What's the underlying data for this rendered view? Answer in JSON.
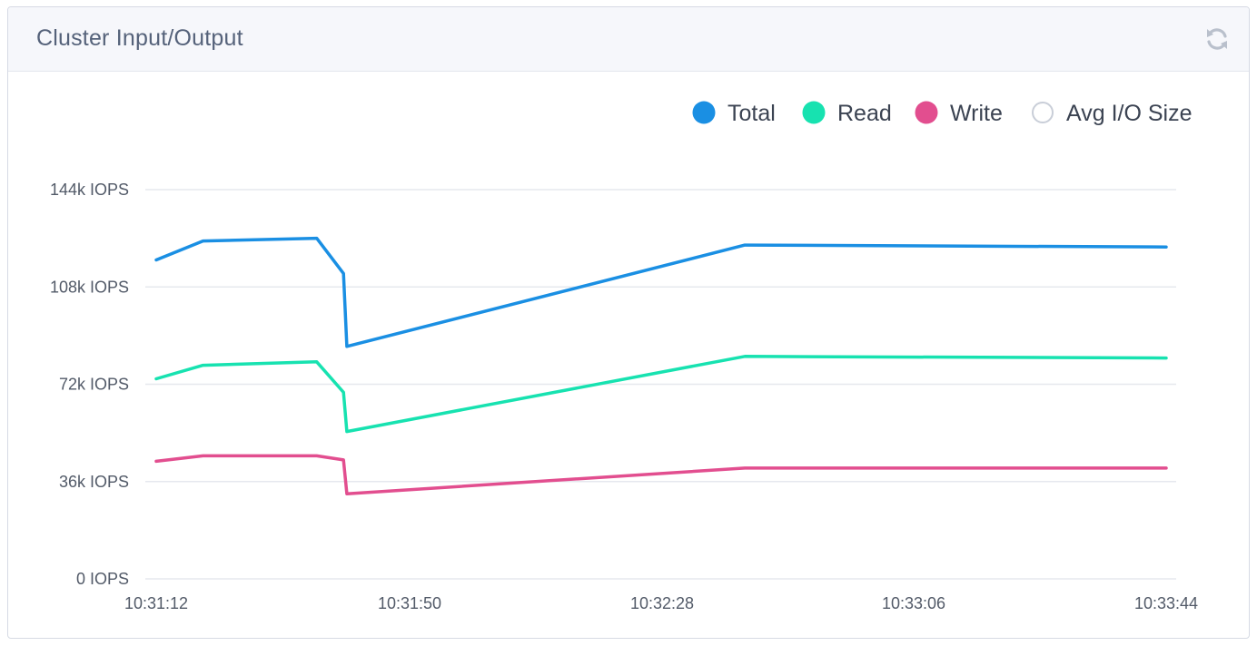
{
  "panel": {
    "title": "Cluster Input/Output",
    "refresh_icon": "refresh-icon"
  },
  "colors": {
    "total": "#1a8fe3",
    "read": "#17e2b0",
    "write": "#e24e8f",
    "avg_io": "#ffffff",
    "grid": "#e6e8ee",
    "axis_text": "#525a68"
  },
  "chart_data": {
    "type": "line",
    "title": "Cluster Input/Output",
    "xlabel": "",
    "ylabel": "",
    "x_ticks": [
      "10:31:12",
      "10:31:50",
      "10:32:28",
      "10:33:06",
      "10:33:44"
    ],
    "y_ticks": [
      "0 IOPS",
      "36k IOPS",
      "72k IOPS",
      "108k IOPS",
      "144k IOPS"
    ],
    "ylim": [
      0,
      144000
    ],
    "xlim_seconds": [
      0,
      152
    ],
    "grid": true,
    "legend_position": "top-right",
    "legend": [
      "Total",
      "Read",
      "Write",
      "Avg I/O Size"
    ],
    "series": [
      {
        "name": "Total",
        "key": "total",
        "x": [
          "10:31:12",
          "10:31:19",
          "10:31:36",
          "10:31:40",
          "10:31:40.5",
          "10:32:40",
          "10:33:43"
        ],
        "x_seconds": [
          0,
          7,
          24,
          28,
          28.5,
          88,
          151
        ],
        "values": [
          118000,
          125000,
          126000,
          113000,
          86000,
          123500,
          122800
        ],
        "hollow": false
      },
      {
        "name": "Read",
        "key": "read",
        "x": [
          "10:31:12",
          "10:31:19",
          "10:31:36",
          "10:31:40",
          "10:31:40.5",
          "10:32:40",
          "10:33:43"
        ],
        "x_seconds": [
          0,
          7,
          24,
          28,
          28.5,
          88,
          151
        ],
        "values": [
          74000,
          79000,
          80300,
          69000,
          54500,
          82300,
          81700
        ],
        "hollow": false
      },
      {
        "name": "Write",
        "key": "write",
        "x": [
          "10:31:12",
          "10:31:19",
          "10:31:36",
          "10:31:40",
          "10:31:40.5",
          "10:32:40",
          "10:33:43"
        ],
        "x_seconds": [
          0,
          7,
          24,
          28,
          28.5,
          88,
          151
        ],
        "values": [
          43500,
          45500,
          45500,
          44000,
          31500,
          41000,
          41000
        ],
        "hollow": false
      },
      {
        "name": "Avg I/O Size",
        "key": "avg_io",
        "x": [],
        "values": [],
        "hollow": true
      }
    ]
  }
}
